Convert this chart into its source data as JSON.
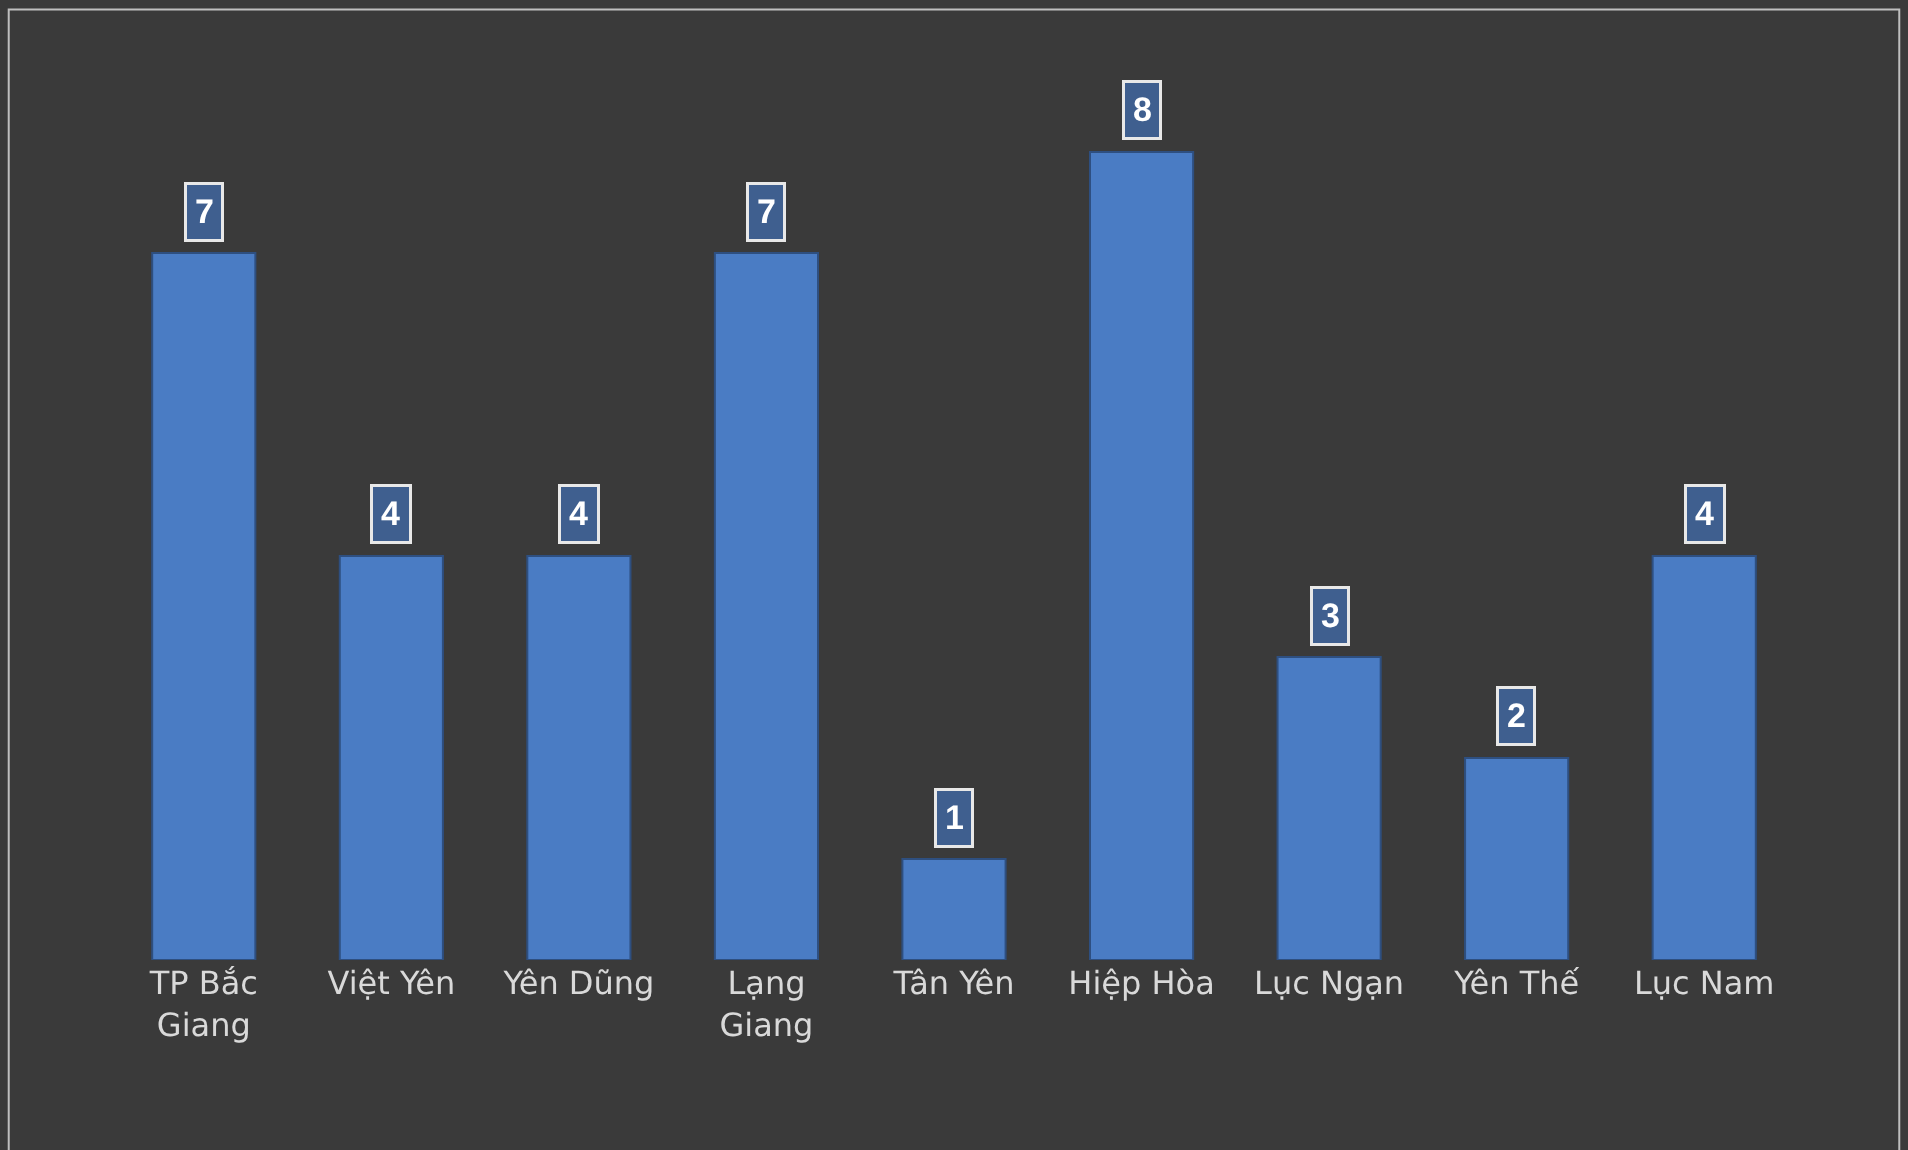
{
  "chart_data": {
    "type": "bar",
    "categories": [
      "TP Bắc Giang",
      "Việt Yên",
      "Yên Dũng",
      "Lạng Giang",
      "Tân Yên",
      "Hiệp Hòa",
      "Lục Ngạn",
      "Yên Thế",
      "Lục Nam"
    ],
    "values": [
      7,
      4,
      4,
      7,
      1,
      8,
      3,
      2,
      4
    ],
    "color": "#4a7cc4",
    "data_labels": true,
    "legend": false
  }
}
